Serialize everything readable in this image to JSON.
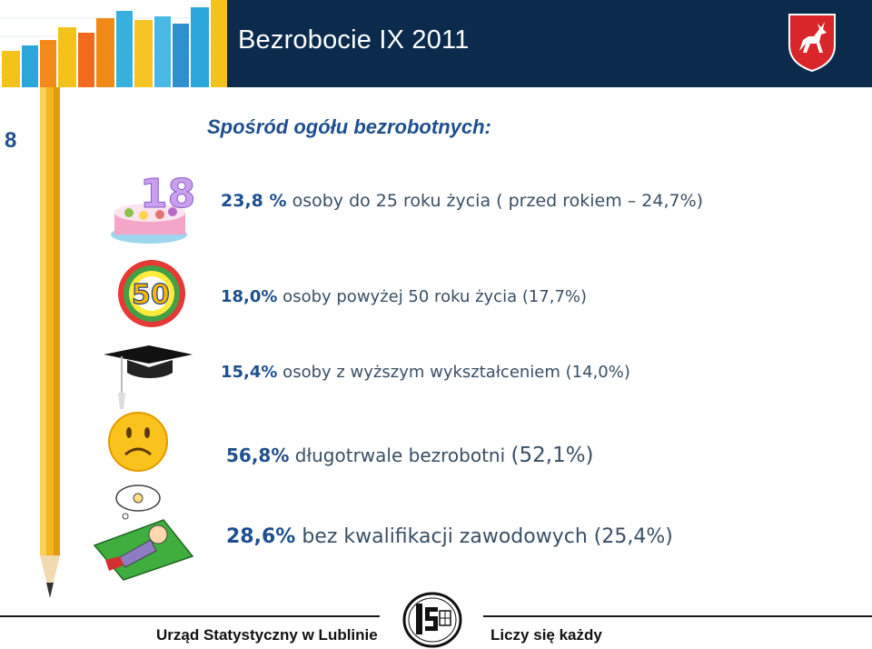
{
  "header": {
    "title": "Bezrobocie IX 2011"
  },
  "slide": {
    "number": "8"
  },
  "heading": "Spośród ogółu bezrobotnych:",
  "stats": [
    {
      "value": "23,8 %",
      "text": " osoby do 25 roku życia ( przed rokiem  – 24,7%)",
      "icon": "birthday-cake-icon"
    },
    {
      "value": "18,0%",
      "text": " osoby powyżej 50 roku życia (17,7%)",
      "icon": "balloon-50-icon"
    },
    {
      "value": "15,4%",
      "text": " osoby z wyższym wykształceniem (14,0%)",
      "icon": "graduation-cap-icon"
    },
    {
      "value": "56,8%",
      "text": " długotrwale bezrobotni ",
      "prev": "(52,1%)",
      "icon": "sad-face-icon"
    },
    {
      "value": "28,6%",
      "text": " bez kwalifikacji zawodowych (25,4%)",
      "icon": "dreaming-person-icon"
    }
  ],
  "crest_icon": "lublin-coat-of-arms-icon",
  "footer": {
    "left": "Urząd Statystyczny w Lublinie",
    "right": "Liczy się każdy",
    "logo_icon": "us-stat-logo-icon"
  },
  "colors": {
    "header_bg": "#0b2a4c",
    "accent": "#1f4f8f",
    "text": "#3a4f63"
  }
}
